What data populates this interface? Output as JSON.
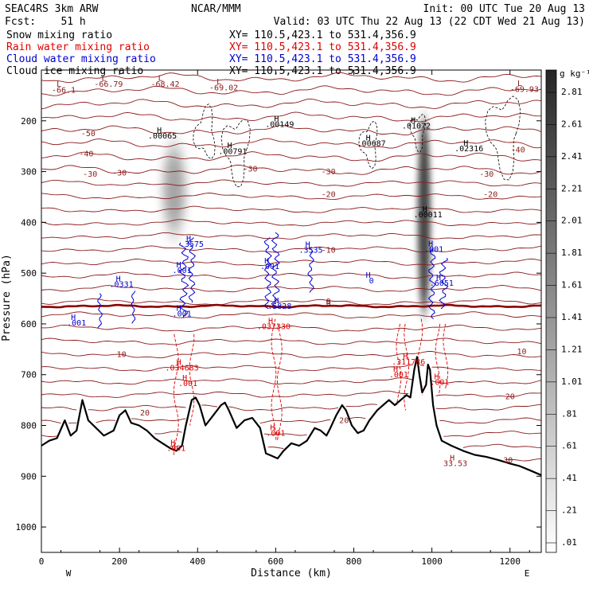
{
  "header": {
    "model": "SEAC4RS   3km ARW",
    "center": "NCAR/MMM",
    "init": "Init: 00 UTC Tue 20 Aug 13",
    "fcst": "Fcst:    51 h",
    "valid": "Valid: 03 UTC Thu 22 Aug 13 (22 CDT Wed 21 Aug 13)",
    "fields": [
      {
        "label": "Snow mixing ratio",
        "xy": "XY= 110.5,423.1 to 531.4,356.9",
        "color": "#000000"
      },
      {
        "label": "Rain water mixing ratio",
        "xy": "XY= 110.5,423.1 to 531.4,356.9",
        "color": "#e00000"
      },
      {
        "label": "Cloud water mixing ratio",
        "xy": "XY= 110.5,423.1 to 531.4,356.9",
        "color": "#0000d0"
      },
      {
        "label": "Cloud ice mixing ratio",
        "xy": "XY= 110.5,423.1 to 531.4,356.9",
        "color": "#000000"
      }
    ]
  },
  "colors": {
    "temperature": "#8b1a1a",
    "freezing": "#8b0000",
    "rain": "#e00000",
    "cloud_water": "#0000d0",
    "terrain": "#000000"
  },
  "chart_data": {
    "type": "contour cross-section",
    "xlabel": "Distance (km)",
    "ylabel": "Pressure (hPa)",
    "xlim": [
      0,
      1280
    ],
    "ylim": [
      1050,
      100
    ],
    "xticks": [
      0,
      200,
      400,
      600,
      800,
      1000,
      1200
    ],
    "yticks": [
      200,
      300,
      400,
      500,
      600,
      700,
      800,
      900,
      1000
    ],
    "xends": {
      "left": "W",
      "right": "E"
    },
    "colorbar": {
      "unit": "g kg⁻¹",
      "levels": [
        ".01",
        ".21",
        ".41",
        ".61",
        ".81",
        "1.01",
        "1.21",
        "1.41",
        "1.61",
        "1.81",
        "2.01",
        "2.21",
        "2.41",
        "2.61",
        "2.81"
      ]
    },
    "snow_columns": [
      {
        "x": 340,
        "p_top": 250,
        "p_bottom": 420,
        "max": 0.6
      },
      {
        "x": 980,
        "p_top": 195,
        "p_bottom": 580,
        "max": 2.0
      }
    ],
    "freezing_level": {
      "label": "0",
      "p": 565
    },
    "isotherms": [
      {
        "label": "-50",
        "x": 120,
        "p": 230
      },
      {
        "label": "-40",
        "x": 115,
        "p": 270
      },
      {
        "label": "-40",
        "x": 1220,
        "p": 262
      },
      {
        "label": "-30",
        "x": 125,
        "p": 310
      },
      {
        "label": "-30",
        "x": 200,
        "p": 308
      },
      {
        "label": "-30",
        "x": 535,
        "p": 300
      },
      {
        "label": "-30",
        "x": 735,
        "p": 305
      },
      {
        "label": "-30",
        "x": 1140,
        "p": 310
      },
      {
        "label": "-20",
        "x": 735,
        "p": 350
      },
      {
        "label": "-20",
        "x": 1150,
        "p": 350
      },
      {
        "label": "-10",
        "x": 735,
        "p": 460
      },
      {
        "label": "0",
        "x": 735,
        "p": 565
      },
      {
        "label": "10",
        "x": 205,
        "p": 665
      },
      {
        "label": "10",
        "x": 1230,
        "p": 660
      },
      {
        "label": "20",
        "x": 265,
        "p": 780
      },
      {
        "label": "20",
        "x": 775,
        "p": 795
      },
      {
        "label": "20",
        "x": 1200,
        "p": 748
      },
      {
        "label": "30",
        "x": 1195,
        "p": 874
      }
    ],
    "lows": [
      {
        "label": "L",
        "value": "-66.1",
        "x": 45,
        "p": 145
      },
      {
        "label": "L",
        "value": "-66.79",
        "x": 160,
        "p": 133
      },
      {
        "label": "L",
        "value": "-68.42",
        "x": 305,
        "p": 133
      },
      {
        "label": "L",
        "value": "-69.02",
        "x": 455,
        "p": 140
      },
      {
        "label": "L",
        "value": "-69.93",
        "x": 1225,
        "p": 143
      }
    ],
    "highs": [
      {
        "label": "H",
        "value": ".00065",
        "x": 310,
        "p": 235,
        "field": "snow"
      },
      {
        "label": "H",
        "value": ".00791",
        "x": 490,
        "p": 265,
        "field": "snow"
      },
      {
        "label": "H",
        "value": ".00149",
        "x": 610,
        "p": 212,
        "field": "snow"
      },
      {
        "label": "H",
        "value": ".00687",
        "x": 845,
        "p": 250,
        "field": "snow"
      },
      {
        "label": "H",
        "value": ".01072",
        "x": 960,
        "p": 215,
        "field": "snow"
      },
      {
        "label": "H",
        "value": ".02316",
        "x": 1095,
        "p": 260,
        "field": "snow"
      },
      {
        "label": "H",
        "value": ".00011",
        "x": 990,
        "p": 390,
        "field": "snow"
      },
      {
        "label": "H",
        "value": ".3575",
        "x": 385,
        "p": 448,
        "field": "cloud_water"
      },
      {
        "label": "H",
        "value": ".001",
        "x": 360,
        "p": 500,
        "field": "cloud_water"
      },
      {
        "label": "H",
        "value": ".0331",
        "x": 205,
        "p": 527,
        "field": "cloud_water"
      },
      {
        "label": "H",
        "value": ".001",
        "x": 90,
        "p": 603,
        "field": "cloud_water"
      },
      {
        "label": "H",
        "value": ".001",
        "x": 360,
        "p": 585,
        "field": "cloud_water"
      },
      {
        "label": "H",
        "value": ".3535",
        "x": 690,
        "p": 460,
        "field": "cloud_water"
      },
      {
        "label": "H",
        "value": ".001",
        "x": 585,
        "p": 492,
        "field": "cloud_water"
      },
      {
        "label": "H",
        "value": ".5828",
        "x": 610,
        "p": 570,
        "field": "cloud_water"
      },
      {
        "label": "H",
        "value": "0",
        "x": 845,
        "p": 520,
        "field": "cloud_water"
      },
      {
        "label": "H",
        "value": ".001",
        "x": 1005,
        "p": 458,
        "field": "cloud_water"
      },
      {
        "label": "H",
        "value": ".6051",
        "x": 1025,
        "p": 525,
        "field": "cloud_water"
      },
      {
        "label": "H",
        "value": ".037330",
        "x": 595,
        "p": 610,
        "field": "rain"
      },
      {
        "label": "H",
        "value": ".034683",
        "x": 360,
        "p": 692,
        "field": "rain"
      },
      {
        "label": "H",
        "value": ".001",
        "x": 375,
        "p": 722,
        "field": "rain"
      },
      {
        "label": "H",
        "value": ".311786",
        "x": 940,
        "p": 680,
        "field": "rain"
      },
      {
        "label": "H",
        "value": ".001",
        "x": 915,
        "p": 705,
        "field": "rain"
      },
      {
        "label": "H",
        "value": ".001",
        "x": 1020,
        "p": 720,
        "field": "rain"
      },
      {
        "label": "H",
        "value": ".001",
        "x": 345,
        "p": 850,
        "field": "rain"
      },
      {
        "label": "H",
        "value": ".001",
        "x": 600,
        "p": 820,
        "field": "rain"
      },
      {
        "label": "H",
        "value": "33.53",
        "x": 1060,
        "p": 880,
        "field": "temperature"
      }
    ],
    "terrain": [
      [
        0,
        840
      ],
      [
        20,
        830
      ],
      [
        40,
        825
      ],
      [
        60,
        790
      ],
      [
        75,
        820
      ],
      [
        90,
        810
      ],
      [
        105,
        750
      ],
      [
        120,
        790
      ],
      [
        140,
        805
      ],
      [
        160,
        820
      ],
      [
        185,
        810
      ],
      [
        200,
        780
      ],
      [
        215,
        770
      ],
      [
        230,
        795
      ],
      [
        250,
        800
      ],
      [
        270,
        810
      ],
      [
        290,
        825
      ],
      [
        310,
        835
      ],
      [
        330,
        845
      ],
      [
        345,
        850
      ],
      [
        360,
        840
      ],
      [
        370,
        800
      ],
      [
        385,
        750
      ],
      [
        395,
        745
      ],
      [
        405,
        760
      ],
      [
        420,
        800
      ],
      [
        440,
        780
      ],
      [
        460,
        760
      ],
      [
        470,
        755
      ],
      [
        480,
        770
      ],
      [
        500,
        805
      ],
      [
        520,
        790
      ],
      [
        540,
        785
      ],
      [
        560,
        805
      ],
      [
        575,
        855
      ],
      [
        590,
        860
      ],
      [
        605,
        865
      ],
      [
        620,
        850
      ],
      [
        640,
        835
      ],
      [
        660,
        840
      ],
      [
        680,
        830
      ],
      [
        700,
        805
      ],
      [
        715,
        810
      ],
      [
        730,
        820
      ],
      [
        740,
        805
      ],
      [
        755,
        780
      ],
      [
        770,
        760
      ],
      [
        780,
        770
      ],
      [
        795,
        800
      ],
      [
        810,
        815
      ],
      [
        825,
        810
      ],
      [
        840,
        790
      ],
      [
        860,
        770
      ],
      [
        875,
        760
      ],
      [
        890,
        750
      ],
      [
        905,
        760
      ],
      [
        920,
        750
      ],
      [
        935,
        740
      ],
      [
        945,
        745
      ],
      [
        955,
        690
      ],
      [
        962,
        665
      ],
      [
        968,
        700
      ],
      [
        975,
        735
      ],
      [
        985,
        720
      ],
      [
        990,
        680
      ],
      [
        995,
        690
      ],
      [
        1003,
        760
      ],
      [
        1012,
        800
      ],
      [
        1025,
        830
      ],
      [
        1050,
        840
      ],
      [
        1080,
        850
      ],
      [
        1110,
        858
      ],
      [
        1140,
        862
      ],
      [
        1170,
        868
      ],
      [
        1200,
        875
      ],
      [
        1225,
        880
      ],
      [
        1250,
        888
      ],
      [
        1280,
        898
      ]
    ]
  }
}
